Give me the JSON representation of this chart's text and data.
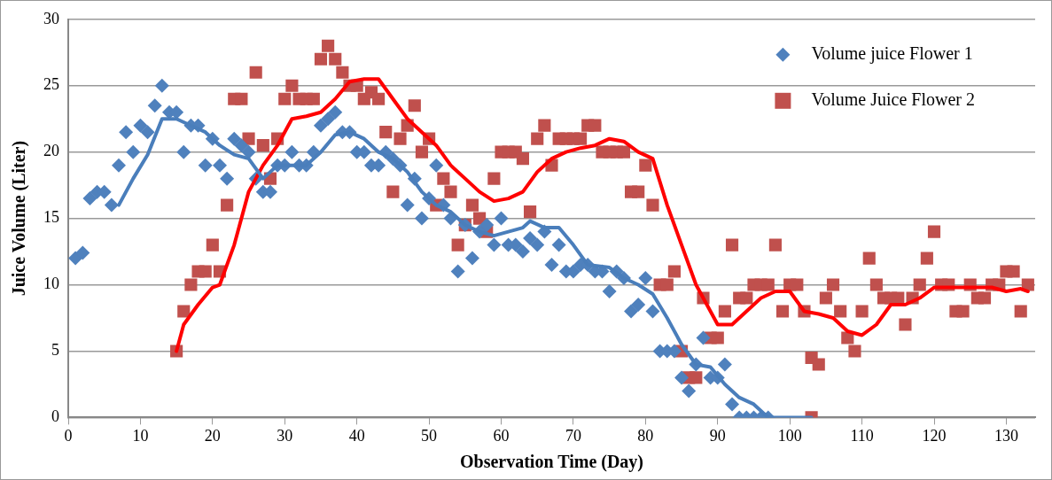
{
  "chart_data": {
    "type": "scatter",
    "xlabel": "Observation Time (Day)",
    "ylabel": "Juice Volume (Liter)",
    "xlim": [
      0,
      134
    ],
    "xticks": [
      0,
      10,
      20,
      30,
      40,
      50,
      60,
      70,
      80,
      90,
      100,
      110,
      120,
      130
    ],
    "ylim": [
      0,
      30
    ],
    "yticks": [
      0,
      5,
      10,
      15,
      20,
      25,
      30
    ],
    "grid": "y",
    "legend": "top right",
    "series": [
      {
        "name": "Volume juice Flower 1",
        "marker": "diamond",
        "color": "#4f81bd",
        "x": [
          1,
          2,
          3,
          4,
          5,
          6,
          7,
          8,
          9,
          10,
          11,
          12,
          13,
          14,
          15,
          16,
          17,
          18,
          19,
          20,
          21,
          22,
          23,
          24,
          25,
          26,
          27,
          28,
          29,
          30,
          31,
          32,
          33,
          34,
          35,
          36,
          37,
          38,
          39,
          40,
          41,
          42,
          43,
          44,
          45,
          46,
          47,
          48,
          49,
          50,
          51,
          52,
          53,
          54,
          55,
          56,
          57,
          58,
          59,
          60,
          61,
          62,
          63,
          64,
          65,
          66,
          67,
          68,
          69,
          70,
          71,
          72,
          73,
          74,
          75,
          76,
          77,
          78,
          79,
          80,
          81,
          82,
          83,
          84,
          85,
          86,
          87,
          88,
          89,
          90,
          91,
          92,
          93,
          94,
          95,
          96,
          97
        ],
        "values": [
          12,
          12.4,
          16.5,
          17,
          17,
          16,
          19,
          21.5,
          20,
          22,
          21.5,
          23.5,
          25,
          23,
          23,
          20,
          22,
          22,
          19,
          21,
          19,
          18,
          21,
          20.5,
          20,
          18,
          17,
          17,
          19,
          19,
          20,
          19,
          19,
          20,
          22,
          22.5,
          23,
          21.5,
          21.5,
          20,
          20,
          19,
          19,
          20,
          19.5,
          19,
          16,
          18,
          15,
          16.5,
          19,
          16,
          15,
          11,
          14.5,
          12,
          14,
          14.5,
          13,
          15,
          13,
          13,
          12.5,
          13.5,
          13,
          14,
          11.5,
          13,
          11,
          11,
          11.5,
          11.5,
          11,
          11,
          9.5,
          11,
          10.5,
          8,
          8.5,
          10.5,
          8,
          5,
          5,
          5,
          3,
          2,
          4,
          6,
          3,
          3,
          4,
          1,
          0,
          0,
          0,
          0,
          0
        ]
      },
      {
        "name": "Volume Juice Flower 2",
        "marker": "square",
        "color": "#c0504d",
        "x": [
          15,
          16,
          17,
          18,
          19,
          20,
          21,
          22,
          23,
          24,
          25,
          26,
          27,
          28,
          29,
          30,
          31,
          32,
          33,
          34,
          35,
          36,
          37,
          38,
          39,
          40,
          41,
          42,
          43,
          44,
          45,
          46,
          47,
          48,
          49,
          50,
          51,
          52,
          53,
          54,
          55,
          56,
          57,
          58,
          59,
          60,
          61,
          62,
          63,
          64,
          65,
          66,
          67,
          68,
          69,
          70,
          71,
          72,
          73,
          74,
          75,
          76,
          77,
          78,
          79,
          80,
          81,
          82,
          83,
          84,
          85,
          86,
          87,
          88,
          89,
          90,
          91,
          92,
          93,
          94,
          95,
          96,
          97,
          98,
          99,
          100,
          101,
          102,
          103,
          103,
          104,
          105,
          106,
          107,
          108,
          109,
          110,
          111,
          112,
          113,
          114,
          115,
          116,
          117,
          118,
          119,
          120,
          121,
          122,
          123,
          124,
          125,
          126,
          127,
          128,
          129,
          130,
          131,
          132,
          133
        ],
        "values": [
          5,
          8,
          10,
          11,
          11,
          13,
          11,
          16,
          24,
          24,
          21,
          26,
          20.5,
          18,
          21,
          24,
          25,
          24,
          24,
          24,
          27,
          28,
          27,
          26,
          25,
          25,
          24,
          24.5,
          24,
          21.5,
          17,
          21,
          22,
          23.5,
          20,
          21,
          16,
          18,
          17,
          13,
          14.5,
          16,
          15,
          14,
          18,
          20,
          20,
          20,
          19.5,
          15.5,
          21,
          22,
          19,
          21,
          21,
          21,
          21,
          22,
          22,
          20,
          20,
          20,
          20,
          17,
          17,
          19,
          16,
          10,
          10,
          11,
          5,
          3,
          3,
          9,
          6,
          6,
          8,
          13,
          9,
          9,
          10,
          10,
          10,
          13,
          8,
          10,
          10,
          8,
          4.5,
          0,
          4,
          9,
          10,
          8,
          6,
          5,
          8,
          12,
          10,
          9,
          9,
          9,
          7,
          9,
          10,
          12,
          14,
          10,
          10,
          8,
          8,
          10,
          9,
          9,
          10,
          10,
          11,
          11,
          8,
          10
        ]
      },
      {
        "type": "line",
        "marker": "none",
        "line_style": "solid",
        "color": "#4a7ebb",
        "x": [
          7,
          9,
          11,
          13,
          15,
          17,
          19,
          21,
          23,
          25,
          27,
          29,
          31,
          33,
          35,
          37,
          39,
          41,
          43,
          45,
          47,
          49,
          51,
          53,
          55,
          57,
          59,
          61,
          63,
          64,
          66,
          68,
          70,
          72,
          75,
          77,
          79,
          81,
          83,
          85,
          87,
          89,
          91,
          93,
          95,
          97,
          100,
          103
        ],
        "values": [
          16,
          18,
          19.8,
          22.5,
          22.5,
          22,
          21.5,
          20.5,
          19.8,
          19.5,
          18,
          19,
          19,
          19,
          20,
          21.3,
          21.5,
          21,
          20,
          19.5,
          18.5,
          17,
          16,
          15.5,
          14.5,
          14,
          13.7,
          14,
          14.3,
          14.8,
          14.3,
          14.3,
          13,
          11.5,
          11.3,
          10.5,
          10,
          9.3,
          7.5,
          5.5,
          4,
          3.8,
          2.5,
          1.5,
          1,
          0,
          0,
          0
        ]
      },
      {
        "type": "line",
        "marker": "none",
        "line_style": "solid",
        "color": "#ff0000",
        "x": [
          15,
          16,
          18,
          20,
          21,
          23,
          25,
          27,
          29,
          31,
          33,
          35,
          37,
          39,
          41,
          43,
          45,
          47,
          49,
          51,
          53,
          55,
          57,
          59,
          61,
          63,
          65,
          67,
          69,
          71,
          73,
          75,
          77,
          79,
          81,
          83,
          85,
          87,
          89,
          90,
          92,
          94,
          96,
          98,
          100,
          102,
          104,
          106,
          108,
          110,
          112,
          114,
          116,
          118,
          120,
          122,
          124,
          126,
          128,
          130,
          132,
          133
        ],
        "values": [
          5,
          7,
          8.5,
          9.8,
          10,
          13,
          17,
          19,
          20.5,
          22.5,
          22.7,
          23,
          24,
          25.3,
          25.5,
          25.5,
          24,
          22.5,
          21.5,
          20.5,
          19,
          18,
          17,
          16.3,
          16.5,
          17,
          18.5,
          19.5,
          20,
          20.3,
          20.5,
          21,
          20.8,
          20,
          19.5,
          16,
          13,
          10,
          8,
          7,
          7,
          8,
          9,
          9.5,
          9.5,
          8,
          7.8,
          7.5,
          6.5,
          6.2,
          7,
          8.5,
          8.5,
          9,
          9.8,
          9.8,
          9.8,
          9.8,
          9.8,
          9.5,
          9.7,
          9.5
        ]
      }
    ]
  }
}
